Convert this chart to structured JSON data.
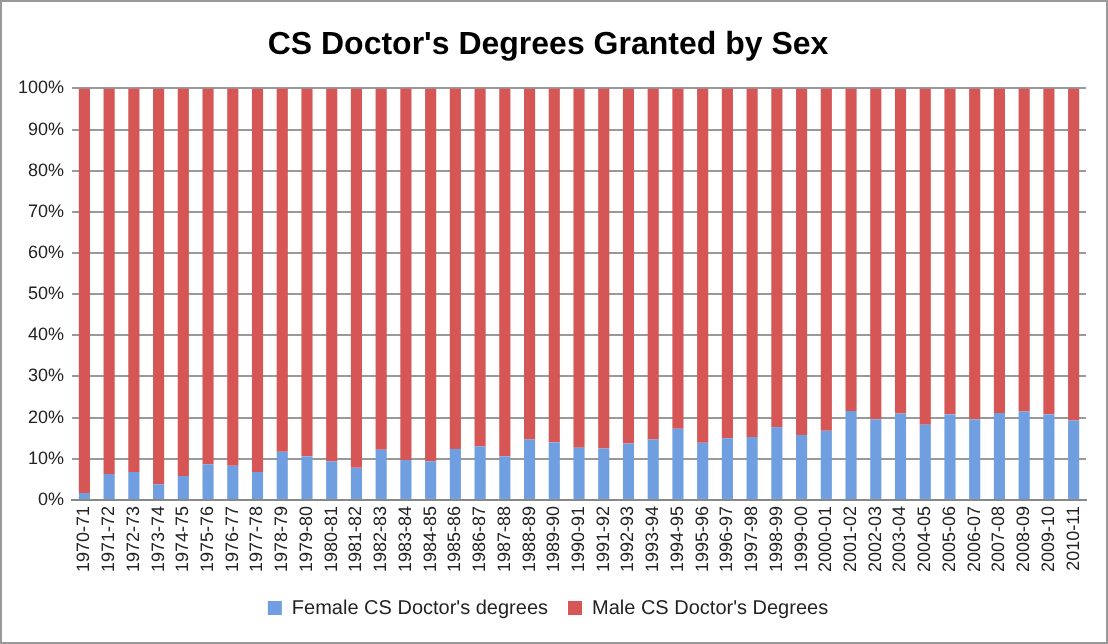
{
  "chart_data": {
    "type": "bar",
    "title": "CS Doctor's Degrees Granted by Sex",
    "stacked": true,
    "categories": [
      "1970-71",
      "1971-72",
      "1972-73",
      "1973-74",
      "1974-75",
      "1975-76",
      "1976-77",
      "1977-78",
      "1978-79",
      "1979-80",
      "1980-81",
      "1981-82",
      "1982-83",
      "1983-84",
      "1984-85",
      "1985-86",
      "1986-87",
      "1987-88",
      "1988-89",
      "1989-90",
      "1990-91",
      "1991-92",
      "1992-93",
      "1993-94",
      "1994-95",
      "1995-96",
      "1996-97",
      "1997-98",
      "1998-99",
      "1999-00",
      "2000-01",
      "2001-02",
      "2002-03",
      "2003-04",
      "2004-05",
      "2005-06",
      "2006-07",
      "2007-08",
      "2008-09",
      "2009-10",
      "2010-11"
    ],
    "series": [
      {
        "name": "Female CS Doctor's degrees",
        "color": "#6f9fe0",
        "values": [
          1.7,
          6.3,
          6.8,
          3.8,
          5.8,
          8.7,
          8.3,
          6.8,
          11.7,
          10.6,
          9.4,
          7.8,
          12.2,
          9.7,
          9.4,
          12.4,
          13,
          10.6,
          14.7,
          14,
          12.7,
          12.5,
          13.7,
          14.7,
          17.3,
          13.9,
          15,
          15.3,
          17.7,
          15.8,
          16.8,
          21.6,
          19.6,
          21,
          18.3,
          20.8,
          19.6,
          21.1,
          21.5,
          20.8,
          19.3
        ]
      },
      {
        "name": "Male CS Doctor's Degrees",
        "color": "#d65656",
        "values": [
          98.3,
          93.7,
          93.2,
          96.2,
          94.2,
          91.3,
          91.7,
          93.2,
          88.3,
          89.4,
          90.6,
          92.2,
          87.8,
          90.3,
          90.6,
          87.6,
          87,
          89.4,
          85.3,
          86,
          87.3,
          87.5,
          86.3,
          85.3,
          82.7,
          86.1,
          85,
          84.7,
          82.3,
          84.2,
          83.2,
          78.4,
          80.4,
          79,
          81.7,
          79.2,
          80.4,
          78.9,
          78.5,
          79.2,
          80.7
        ]
      }
    ],
    "ylim": [
      0,
      100
    ],
    "yticks": [
      {
        "value": 0,
        "label": "0%"
      },
      {
        "value": 10,
        "label": "10%"
      },
      {
        "value": 20,
        "label": "20%"
      },
      {
        "value": 30,
        "label": "30%"
      },
      {
        "value": 40,
        "label": "40%"
      },
      {
        "value": 50,
        "label": "50%"
      },
      {
        "value": 60,
        "label": "60%"
      },
      {
        "value": 70,
        "label": "70%"
      },
      {
        "value": 80,
        "label": "80%"
      },
      {
        "value": 90,
        "label": "90%"
      },
      {
        "value": 100,
        "label": "100%"
      }
    ],
    "grid": "y",
    "legend": "bottom"
  }
}
